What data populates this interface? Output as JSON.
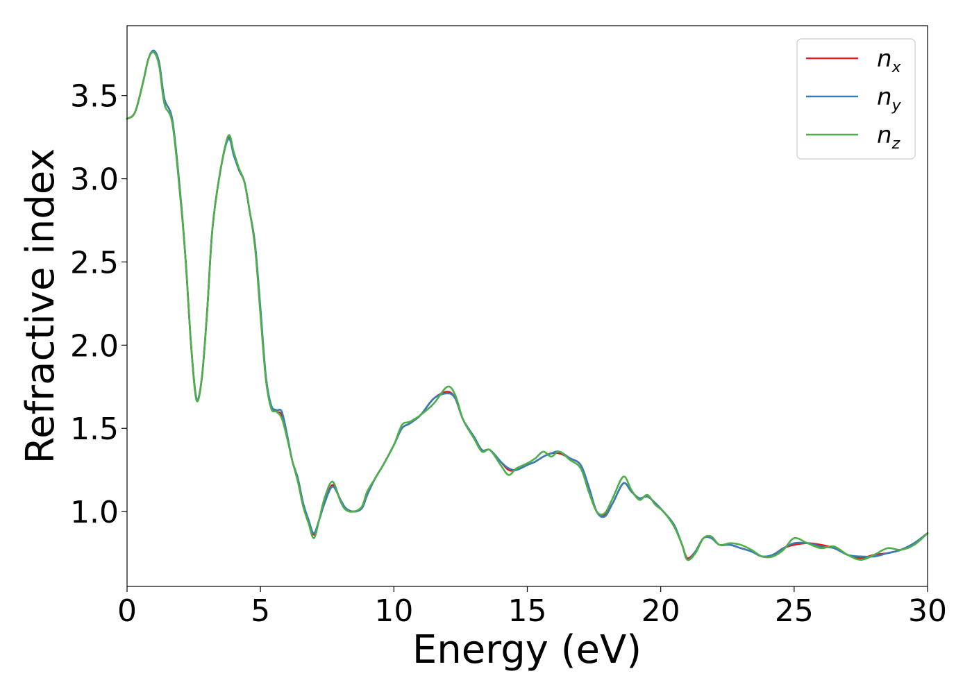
{
  "chart_data": {
    "type": "line",
    "xlabel": "Energy (eV)",
    "ylabel": "Refractive index",
    "xlim": [
      0,
      30
    ],
    "ylim": [
      0.55,
      3.92
    ],
    "xticks": [
      0,
      5,
      10,
      15,
      20,
      25,
      30
    ],
    "xtick_labels": [
      "0",
      "5",
      "10",
      "15",
      "20",
      "25",
      "30"
    ],
    "yticks": [
      1.0,
      1.5,
      2.0,
      2.5,
      3.0,
      3.5
    ],
    "ytick_labels": [
      "1.0",
      "1.5",
      "2.0",
      "2.5",
      "3.0",
      "3.5"
    ],
    "grid": false,
    "legend_position": "top-right",
    "series": [
      {
        "name": "n_x",
        "label_base": "n",
        "label_sub": "x",
        "color": "#e41a1c",
        "x": [
          0,
          0.3,
          0.6,
          0.8,
          1.0,
          1.2,
          1.4,
          1.7,
          2.0,
          2.2,
          2.4,
          2.6,
          2.8,
          3.0,
          3.2,
          3.5,
          3.8,
          4.0,
          4.2,
          4.4,
          4.6,
          4.8,
          5.0,
          5.2,
          5.4,
          5.6,
          5.8,
          6.0,
          6.2,
          6.4,
          6.6,
          6.8,
          7.0,
          7.2,
          7.4,
          7.7,
          8.0,
          8.2,
          8.5,
          8.8,
          9.0,
          9.3,
          9.6,
          10.0,
          10.3,
          10.6,
          11.0,
          11.5,
          12.0,
          12.3,
          12.6,
          13.0,
          13.3,
          13.6,
          14.0,
          14.3,
          14.6,
          15.0,
          15.3,
          15.6,
          15.9,
          16.2,
          16.6,
          17.0,
          17.3,
          17.6,
          17.9,
          18.2,
          18.6,
          18.9,
          19.2,
          19.5,
          19.8,
          20.1,
          20.5,
          20.8,
          21.0,
          21.3,
          21.6,
          21.9,
          22.2,
          22.6,
          23.0,
          23.4,
          23.8,
          24.2,
          24.6,
          25.0,
          25.5,
          26.0,
          26.5,
          27.0,
          27.5,
          28.0,
          28.5,
          29.0,
          29.5,
          30.0
        ],
        "y": [
          3.36,
          3.4,
          3.58,
          3.72,
          3.77,
          3.7,
          3.48,
          3.35,
          2.9,
          2.5,
          2.0,
          1.68,
          1.8,
          2.2,
          2.7,
          3.05,
          3.25,
          3.15,
          3.05,
          2.98,
          2.8,
          2.6,
          2.2,
          1.8,
          1.63,
          1.6,
          1.58,
          1.45,
          1.3,
          1.2,
          1.05,
          0.95,
          0.86,
          0.95,
          1.05,
          1.16,
          1.07,
          1.02,
          1.0,
          1.02,
          1.1,
          1.2,
          1.28,
          1.4,
          1.5,
          1.53,
          1.58,
          1.68,
          1.72,
          1.68,
          1.55,
          1.45,
          1.37,
          1.37,
          1.3,
          1.25,
          1.25,
          1.28,
          1.3,
          1.33,
          1.35,
          1.35,
          1.32,
          1.28,
          1.15,
          1.0,
          0.98,
          1.05,
          1.17,
          1.12,
          1.08,
          1.09,
          1.05,
          1.0,
          0.92,
          0.8,
          0.72,
          0.76,
          0.84,
          0.84,
          0.8,
          0.8,
          0.78,
          0.76,
          0.73,
          0.74,
          0.78,
          0.8,
          0.81,
          0.8,
          0.78,
          0.74,
          0.72,
          0.74,
          0.75,
          0.77,
          0.81,
          0.87
        ]
      },
      {
        "name": "n_y",
        "label_base": "n",
        "label_sub": "y",
        "color": "#377eb8",
        "x": [
          0,
          0.3,
          0.6,
          0.8,
          1.0,
          1.2,
          1.4,
          1.7,
          2.0,
          2.2,
          2.4,
          2.6,
          2.8,
          3.0,
          3.2,
          3.5,
          3.8,
          4.0,
          4.2,
          4.4,
          4.6,
          4.8,
          5.0,
          5.2,
          5.4,
          5.6,
          5.8,
          6.0,
          6.2,
          6.4,
          6.6,
          6.8,
          7.0,
          7.2,
          7.4,
          7.7,
          8.0,
          8.2,
          8.5,
          8.8,
          9.0,
          9.3,
          9.6,
          10.0,
          10.3,
          10.6,
          11.0,
          11.5,
          12.0,
          12.3,
          12.6,
          13.0,
          13.3,
          13.6,
          14.0,
          14.3,
          14.6,
          15.0,
          15.3,
          15.6,
          15.9,
          16.2,
          16.6,
          17.0,
          17.3,
          17.6,
          17.9,
          18.2,
          18.6,
          18.9,
          19.2,
          19.5,
          19.8,
          20.1,
          20.5,
          20.8,
          21.0,
          21.3,
          21.6,
          21.9,
          22.2,
          22.6,
          23.0,
          23.4,
          23.8,
          24.2,
          24.6,
          25.0,
          25.5,
          26.0,
          26.5,
          27.0,
          27.5,
          28.0,
          28.5,
          29.0,
          29.5,
          30.0
        ],
        "y": [
          3.36,
          3.4,
          3.58,
          3.72,
          3.77,
          3.7,
          3.48,
          3.35,
          2.9,
          2.5,
          2.0,
          1.68,
          1.8,
          2.2,
          2.7,
          3.05,
          3.24,
          3.14,
          3.05,
          2.98,
          2.8,
          2.6,
          2.22,
          1.82,
          1.64,
          1.61,
          1.6,
          1.46,
          1.3,
          1.2,
          1.05,
          0.95,
          0.87,
          0.95,
          1.05,
          1.15,
          1.07,
          1.02,
          1.0,
          1.02,
          1.1,
          1.2,
          1.28,
          1.4,
          1.5,
          1.53,
          1.58,
          1.68,
          1.71,
          1.68,
          1.55,
          1.45,
          1.37,
          1.37,
          1.3,
          1.26,
          1.25,
          1.28,
          1.3,
          1.33,
          1.35,
          1.36,
          1.32,
          1.28,
          1.15,
          1.0,
          0.97,
          1.05,
          1.17,
          1.12,
          1.08,
          1.09,
          1.05,
          1.0,
          0.92,
          0.8,
          0.71,
          0.76,
          0.84,
          0.84,
          0.8,
          0.8,
          0.78,
          0.76,
          0.73,
          0.74,
          0.78,
          0.81,
          0.81,
          0.79,
          0.78,
          0.74,
          0.73,
          0.73,
          0.75,
          0.77,
          0.81,
          0.87
        ]
      },
      {
        "name": "n_z",
        "label_base": "n",
        "label_sub": "z",
        "color": "#4daf4a",
        "x": [
          0,
          0.3,
          0.6,
          0.8,
          1.0,
          1.2,
          1.4,
          1.7,
          2.0,
          2.2,
          2.4,
          2.6,
          2.8,
          3.0,
          3.2,
          3.5,
          3.8,
          4.0,
          4.2,
          4.4,
          4.6,
          4.8,
          5.0,
          5.2,
          5.4,
          5.6,
          5.8,
          6.0,
          6.2,
          6.4,
          6.6,
          6.8,
          7.0,
          7.2,
          7.4,
          7.7,
          8.0,
          8.2,
          8.5,
          8.8,
          9.0,
          9.3,
          9.6,
          10.0,
          10.3,
          10.6,
          11.0,
          11.5,
          12.0,
          12.3,
          12.6,
          13.0,
          13.3,
          13.6,
          14.0,
          14.3,
          14.6,
          15.0,
          15.3,
          15.6,
          15.9,
          16.2,
          16.6,
          17.0,
          17.3,
          17.6,
          17.9,
          18.2,
          18.6,
          18.9,
          19.2,
          19.5,
          19.8,
          20.1,
          20.5,
          20.8,
          21.0,
          21.3,
          21.6,
          21.9,
          22.2,
          22.6,
          23.0,
          23.4,
          23.8,
          24.2,
          24.6,
          25.0,
          25.5,
          26.0,
          26.5,
          27.0,
          27.5,
          28.0,
          28.5,
          29.0,
          29.5,
          30.0
        ],
        "y": [
          3.36,
          3.4,
          3.58,
          3.72,
          3.76,
          3.68,
          3.45,
          3.33,
          2.88,
          2.5,
          2.0,
          1.67,
          1.8,
          2.2,
          2.7,
          3.05,
          3.26,
          3.16,
          3.06,
          2.98,
          2.8,
          2.58,
          2.18,
          1.8,
          1.62,
          1.6,
          1.56,
          1.44,
          1.3,
          1.18,
          1.03,
          0.93,
          0.84,
          0.95,
          1.08,
          1.18,
          1.06,
          1.01,
          1.0,
          1.03,
          1.12,
          1.2,
          1.28,
          1.4,
          1.52,
          1.54,
          1.58,
          1.65,
          1.75,
          1.7,
          1.55,
          1.44,
          1.36,
          1.37,
          1.28,
          1.22,
          1.26,
          1.29,
          1.32,
          1.36,
          1.33,
          1.36,
          1.31,
          1.26,
          1.12,
          1.0,
          0.99,
          1.08,
          1.21,
          1.13,
          1.07,
          1.1,
          1.04,
          1.0,
          0.91,
          0.8,
          0.71,
          0.75,
          0.84,
          0.85,
          0.8,
          0.81,
          0.8,
          0.77,
          0.73,
          0.73,
          0.77,
          0.84,
          0.81,
          0.78,
          0.79,
          0.74,
          0.71,
          0.74,
          0.78,
          0.77,
          0.8,
          0.87
        ]
      }
    ]
  }
}
